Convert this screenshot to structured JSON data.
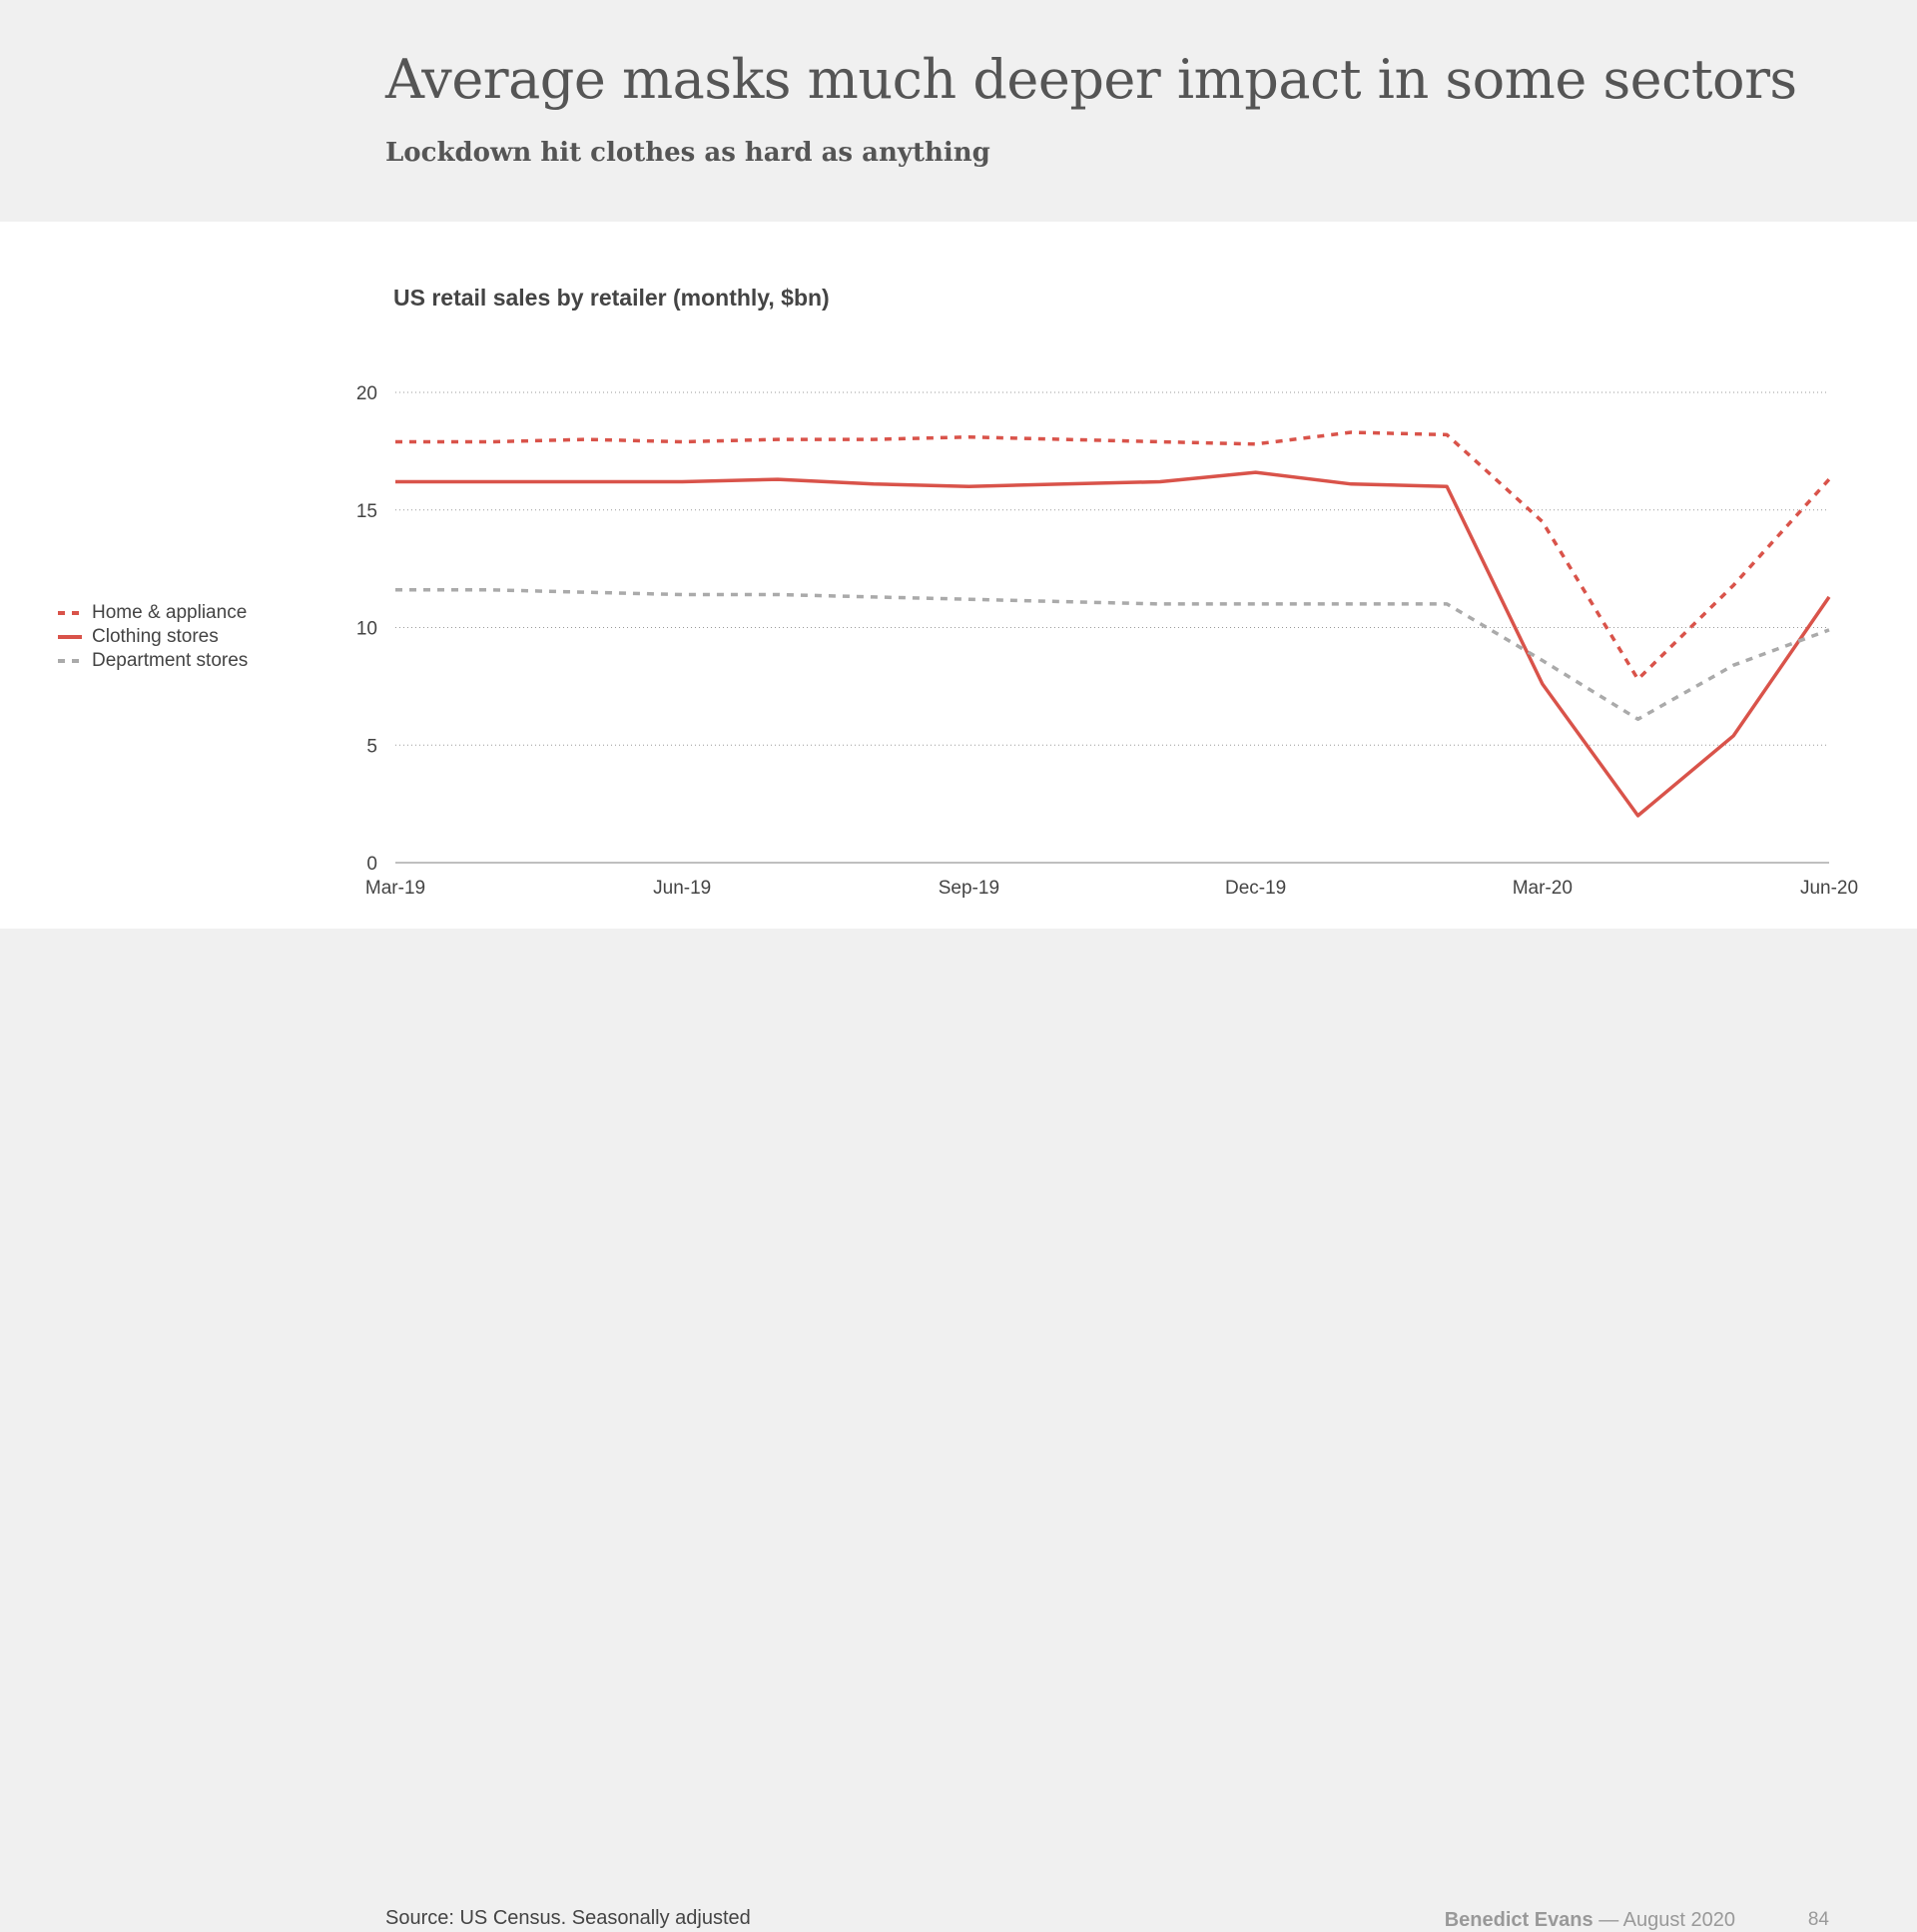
{
  "slide": {
    "title": "Average masks much deeper impact in some sectors",
    "subtitle": "Lockdown hit clothes as hard as anything",
    "source": "Source: US Census. Seasonally adjusted",
    "author": "Benedict Evans",
    "date": "— August 2020",
    "page": "84"
  },
  "chart_data": {
    "type": "line",
    "title": "US retail sales by retailer (monthly, $bn)",
    "xlabel": "",
    "ylabel": "",
    "x": [
      "Mar-19",
      "Apr-19",
      "May-19",
      "Jun-19",
      "Jul-19",
      "Aug-19",
      "Sep-19",
      "Oct-19",
      "Nov-19",
      "Dec-19",
      "Jan-20",
      "Feb-20",
      "Mar-20",
      "Apr-20",
      "May-20",
      "Jun-20"
    ],
    "x_tick_labels": [
      "Mar-19",
      "Jun-19",
      "Sep-19",
      "Dec-19",
      "Mar-20",
      "Jun-20"
    ],
    "y_ticks": [
      0,
      5,
      10,
      15,
      20
    ],
    "ylim": [
      0,
      20
    ],
    "grid": true,
    "legend_position": "left",
    "series": [
      {
        "name": "Home & appliance",
        "style": "dashed",
        "color": "#d9534a",
        "values": [
          17.9,
          17.9,
          18.0,
          17.9,
          18.0,
          18.0,
          18.1,
          18.0,
          17.9,
          17.8,
          18.3,
          18.2,
          14.5,
          7.8,
          11.8,
          16.3
        ]
      },
      {
        "name": "Clothing stores",
        "style": "solid",
        "color": "#d9534a",
        "values": [
          16.2,
          16.2,
          16.2,
          16.2,
          16.3,
          16.1,
          16.0,
          16.1,
          16.2,
          16.6,
          16.1,
          16.0,
          7.6,
          2.0,
          5.4,
          11.3
        ]
      },
      {
        "name": "Department stores",
        "style": "dashed",
        "color": "#aaaaaa",
        "values": [
          11.6,
          11.6,
          11.5,
          11.4,
          11.4,
          11.3,
          11.2,
          11.1,
          11.0,
          11.0,
          11.0,
          11.0,
          8.6,
          6.1,
          8.4,
          9.9
        ]
      }
    ]
  }
}
